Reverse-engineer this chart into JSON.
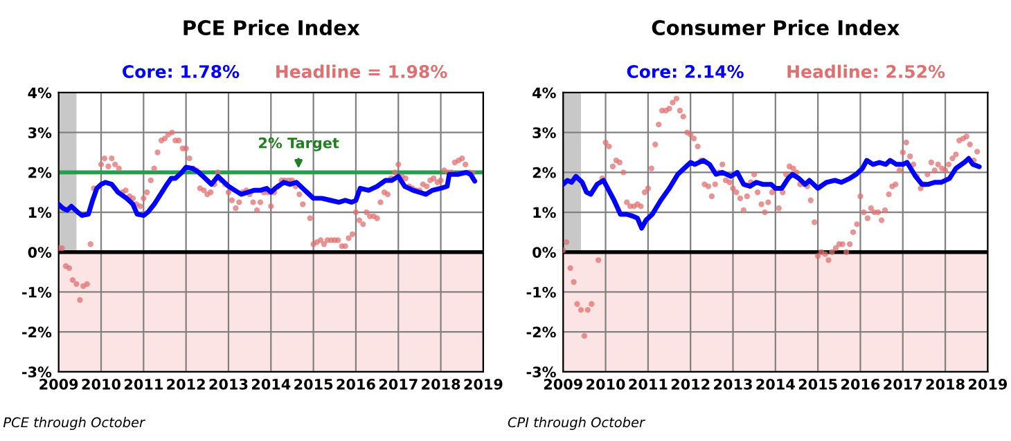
{
  "chart_data": [
    {
      "type": "line",
      "title": "PCE Price Index",
      "xlim": [
        2009,
        2019
      ],
      "xticks": [
        2009,
        2010,
        2011,
        2012,
        2013,
        2014,
        2015,
        2016,
        2017,
        2018,
        2019
      ],
      "ylim": [
        -3,
        4
      ],
      "yticks": [
        {
          "value": -3,
          "label": "-3%"
        },
        {
          "value": -2,
          "label": "-2%"
        },
        {
          "value": -1,
          "label": "-1%"
        },
        {
          "value": 0,
          "label": "0%"
        },
        {
          "value": 1,
          "label": "1%"
        },
        {
          "value": 2,
          "label": "2%"
        },
        {
          "value": 3,
          "label": "3%"
        },
        {
          "value": 4,
          "label": "4%"
        }
      ],
      "grid": true,
      "legend": false,
      "bands": [
        {
          "axis": "x",
          "from": 2009,
          "to": 2009.42,
          "color": "#c8c8c8"
        },
        {
          "axis": "y",
          "from": -3,
          "to": 0,
          "color": "#fde4e4"
        }
      ],
      "ref_lines": [
        {
          "axis": "y",
          "value": 0,
          "color": "#000000"
        },
        {
          "axis": "y",
          "value": 2,
          "color": "#22a050"
        }
      ],
      "annotations": [
        {
          "text": "2% Target",
          "x": 2014.65,
          "y": 2
        },
        "PCE through October"
      ],
      "series": [
        {
          "name": "Headline = 1.98%",
          "type": "scatter",
          "marker": "circle",
          "color": "#e07070",
          "x": [
            2009.0,
            2009.08,
            2009.17,
            2009.25,
            2009.33,
            2009.42,
            2009.5,
            2009.58,
            2009.67,
            2009.75,
            2009.83,
            2010.0,
            2010.08,
            2010.17,
            2010.25,
            2010.33,
            2010.42,
            2010.5,
            2010.58,
            2010.67,
            2010.75,
            2010.83,
            2010.92,
            2011.0,
            2011.08,
            2011.17,
            2011.25,
            2011.33,
            2011.42,
            2011.5,
            2011.58,
            2011.67,
            2011.75,
            2011.83,
            2011.92,
            2012.0,
            2012.08,
            2012.17,
            2012.25,
            2012.33,
            2012.42,
            2012.5,
            2012.58,
            2012.67,
            2012.75,
            2012.83,
            2012.92,
            2013.0,
            2013.08,
            2013.17,
            2013.25,
            2013.33,
            2013.42,
            2013.5,
            2013.58,
            2013.67,
            2013.75,
            2013.83,
            2013.92,
            2014.0,
            2014.08,
            2014.17,
            2014.25,
            2014.33,
            2014.42,
            2014.5,
            2014.58,
            2014.67,
            2014.75,
            2014.92,
            2015.0,
            2015.08,
            2015.17,
            2015.25,
            2015.33,
            2015.42,
            2015.5,
            2015.58,
            2015.67,
            2015.75,
            2015.83,
            2015.92,
            2016.0,
            2016.08,
            2016.17,
            2016.25,
            2016.33,
            2016.42,
            2016.5,
            2016.58,
            2016.67,
            2016.75,
            2016.83,
            2016.92,
            2017.0,
            2017.08,
            2017.17,
            2017.25,
            2017.33,
            2017.42,
            2017.5,
            2017.58,
            2017.67,
            2017.75,
            2017.83,
            2017.92,
            2018.0,
            2018.08,
            2018.17,
            2018.25,
            2018.33,
            2018.42,
            2018.5,
            2018.58,
            2018.67,
            2018.75
          ],
          "values": [
            0.1,
            0.1,
            -0.35,
            -0.4,
            -0.7,
            -0.8,
            -1.2,
            -0.85,
            -0.8,
            0.2,
            1.6,
            2.2,
            2.35,
            2.15,
            2.35,
            2.2,
            2.1,
            1.5,
            1.55,
            1.4,
            1.35,
            1.2,
            1.15,
            1.35,
            1.5,
            1.8,
            2.1,
            2.5,
            2.8,
            2.85,
            2.95,
            3.0,
            2.8,
            2.8,
            2.6,
            2.6,
            2.35,
            2.1,
            2.05,
            1.6,
            1.55,
            1.45,
            1.5,
            1.7,
            2.0,
            1.8,
            1.7,
            1.5,
            1.3,
            1.1,
            1.25,
            1.5,
            1.55,
            1.45,
            1.25,
            1.05,
            1.25,
            1.5,
            1.5,
            1.15,
            1.5,
            1.65,
            1.8,
            1.8,
            1.8,
            1.8,
            1.65,
            1.45,
            1.2,
            0.85,
            0.2,
            0.25,
            0.3,
            0.2,
            0.3,
            0.3,
            0.3,
            0.3,
            0.15,
            0.15,
            0.35,
            0.45,
            1.0,
            0.8,
            0.7,
            1.0,
            0.9,
            0.9,
            0.85,
            1.25,
            1.5,
            1.45,
            1.85,
            2.0,
            2.2,
            1.9,
            1.85,
            1.65,
            1.6,
            1.55,
            1.55,
            1.7,
            1.65,
            1.8,
            1.85,
            1.75,
            1.8,
            2.05,
            2.0,
            2.0,
            2.25,
            2.3,
            2.35,
            2.2,
            2.0,
            1.98
          ]
        },
        {
          "name": "Core: 1.78%",
          "color": "#0000ff",
          "x": [
            2009.0,
            2009.1,
            2009.2,
            2009.3,
            2009.45,
            2009.55,
            2009.7,
            2009.8,
            2009.9,
            2010.0,
            2010.1,
            2010.25,
            2010.4,
            2010.6,
            2010.75,
            2010.85,
            2011.0,
            2011.1,
            2011.25,
            2011.4,
            2011.55,
            2011.65,
            2011.75,
            2011.9,
            2012.0,
            2012.15,
            2012.3,
            2012.45,
            2012.6,
            2012.75,
            2012.9,
            2013.0,
            2013.15,
            2013.3,
            2013.45,
            2013.6,
            2013.75,
            2013.9,
            2014.0,
            2014.1,
            2014.3,
            2014.45,
            2014.6,
            2014.75,
            2014.9,
            2015.0,
            2015.2,
            2015.4,
            2015.6,
            2015.75,
            2015.9,
            2016.0,
            2016.1,
            2016.3,
            2016.5,
            2016.7,
            2016.85,
            2017.0,
            2017.15,
            2017.35,
            2017.5,
            2017.65,
            2017.8,
            2018.0,
            2018.15,
            2018.2,
            2018.4,
            2018.6,
            2018.7,
            2018.8
          ],
          "values": [
            1.2,
            1.1,
            1.05,
            1.15,
            1.0,
            0.92,
            0.95,
            1.3,
            1.6,
            1.7,
            1.75,
            1.7,
            1.5,
            1.35,
            1.2,
            0.95,
            0.92,
            1.0,
            1.2,
            1.45,
            1.7,
            1.85,
            1.85,
            2.0,
            2.13,
            2.1,
            2.0,
            1.85,
            1.7,
            1.9,
            1.75,
            1.65,
            1.55,
            1.45,
            1.5,
            1.55,
            1.55,
            1.6,
            1.5,
            1.6,
            1.75,
            1.7,
            1.75,
            1.6,
            1.45,
            1.35,
            1.35,
            1.3,
            1.25,
            1.3,
            1.25,
            1.3,
            1.6,
            1.55,
            1.65,
            1.8,
            1.8,
            1.9,
            1.65,
            1.55,
            1.5,
            1.45,
            1.55,
            1.6,
            1.65,
            1.95,
            1.95,
            2.0,
            1.95,
            1.78
          ]
        }
      ]
    },
    {
      "type": "line",
      "title": "Consumer Price Index",
      "xlim": [
        2009,
        2019
      ],
      "xticks": [
        2009,
        2010,
        2011,
        2012,
        2013,
        2014,
        2015,
        2016,
        2017,
        2018,
        2019
      ],
      "ylim": [
        -3,
        4
      ],
      "yticks": [
        {
          "value": -3,
          "label": "-3%"
        },
        {
          "value": -2,
          "label": "-2%"
        },
        {
          "value": -1,
          "label": "-1%"
        },
        {
          "value": 0,
          "label": "0%"
        },
        {
          "value": 1,
          "label": "1%"
        },
        {
          "value": 2,
          "label": "2%"
        },
        {
          "value": 3,
          "label": "3%"
        },
        {
          "value": 4,
          "label": "4%"
        }
      ],
      "grid": true,
      "legend": false,
      "bands": [
        {
          "axis": "x",
          "from": 2009,
          "to": 2009.42,
          "color": "#c8c8c8"
        },
        {
          "axis": "y",
          "from": -3,
          "to": 0,
          "color": "#fde4e4"
        }
      ],
      "ref_lines": [
        {
          "axis": "y",
          "value": 0,
          "color": "#000000"
        }
      ],
      "annotations": [
        "CPI through October"
      ],
      "series": [
        {
          "name": "Headline: 2.52%",
          "type": "scatter",
          "marker": "circle",
          "color": "#e07070",
          "x": [
            2009.0,
            2009.08,
            2009.17,
            2009.25,
            2009.33,
            2009.42,
            2009.5,
            2009.58,
            2009.67,
            2009.83,
            2009.92,
            2010.0,
            2010.08,
            2010.17,
            2010.25,
            2010.33,
            2010.42,
            2010.5,
            2010.58,
            2010.67,
            2010.75,
            2010.83,
            2010.92,
            2011.0,
            2011.08,
            2011.17,
            2011.25,
            2011.33,
            2011.42,
            2011.5,
            2011.58,
            2011.67,
            2011.75,
            2011.83,
            2011.92,
            2012.0,
            2012.08,
            2012.17,
            2012.25,
            2012.33,
            2012.42,
            2012.5,
            2012.58,
            2012.67,
            2012.75,
            2012.83,
            2012.92,
            2013.0,
            2013.08,
            2013.17,
            2013.25,
            2013.33,
            2013.42,
            2013.5,
            2013.58,
            2013.67,
            2013.75,
            2013.83,
            2013.92,
            2014.0,
            2014.08,
            2014.17,
            2014.25,
            2014.33,
            2014.42,
            2014.5,
            2014.58,
            2014.67,
            2014.75,
            2014.83,
            2014.92,
            2015.0,
            2015.08,
            2015.17,
            2015.25,
            2015.33,
            2015.42,
            2015.5,
            2015.58,
            2015.67,
            2015.75,
            2015.83,
            2015.92,
            2016.0,
            2016.08,
            2016.17,
            2016.25,
            2016.33,
            2016.42,
            2016.5,
            2016.58,
            2016.67,
            2016.75,
            2016.83,
            2016.92,
            2017.0,
            2017.08,
            2017.17,
            2017.25,
            2017.33,
            2017.42,
            2017.5,
            2017.58,
            2017.67,
            2017.75,
            2017.83,
            2017.92,
            2018.0,
            2018.08,
            2018.17,
            2018.25,
            2018.33,
            2018.42,
            2018.5,
            2018.58,
            2018.67,
            2018.75
          ],
          "values": [
            0.05,
            0.25,
            -0.4,
            -0.75,
            -1.3,
            -1.45,
            -2.1,
            -1.45,
            -1.3,
            -0.2,
            1.85,
            2.75,
            2.65,
            2.15,
            2.3,
            2.25,
            2.0,
            1.25,
            1.15,
            1.15,
            1.2,
            1.15,
            1.5,
            1.6,
            2.1,
            2.7,
            3.2,
            3.55,
            3.55,
            3.6,
            3.75,
            3.85,
            3.55,
            3.4,
            3.0,
            2.95,
            2.85,
            2.65,
            2.3,
            1.7,
            1.65,
            1.4,
            1.7,
            2.0,
            2.2,
            1.8,
            1.75,
            1.6,
            1.5,
            1.35,
            1.05,
            1.4,
            1.75,
            1.95,
            1.5,
            1.2,
            1.0,
            1.25,
            1.5,
            1.6,
            1.1,
            1.5,
            1.95,
            2.15,
            2.1,
            2.0,
            1.7,
            1.7,
            1.65,
            1.3,
            0.75,
            -0.1,
            0.0,
            -0.05,
            -0.2,
            0.0,
            0.1,
            0.2,
            0.2,
            0.0,
            0.2,
            0.5,
            0.7,
            1.4,
            1.0,
            0.85,
            1.1,
            1.0,
            1.0,
            0.8,
            1.05,
            1.45,
            1.65,
            1.7,
            2.05,
            2.5,
            2.75,
            2.4,
            2.2,
            1.9,
            1.6,
            1.7,
            1.95,
            2.25,
            2.05,
            2.2,
            2.1,
            2.05,
            2.2,
            2.35,
            2.45,
            2.8,
            2.85,
            2.9,
            2.7,
            2.3,
            2.52
          ]
        },
        {
          "name": "Core: 2.14%",
          "color": "#0000ff",
          "x": [
            2009.0,
            2009.1,
            2009.2,
            2009.3,
            2009.45,
            2009.55,
            2009.65,
            2009.8,
            2009.95,
            2010.05,
            2010.2,
            2010.35,
            2010.5,
            2010.65,
            2010.75,
            2010.85,
            2010.95,
            2011.1,
            2011.3,
            2011.5,
            2011.7,
            2011.85,
            2012.0,
            2012.1,
            2012.3,
            2012.45,
            2012.6,
            2012.75,
            2012.95,
            2013.1,
            2013.25,
            2013.4,
            2013.55,
            2013.7,
            2013.9,
            2014.0,
            2014.15,
            2014.3,
            2014.4,
            2014.55,
            2014.7,
            2014.8,
            2015.0,
            2015.2,
            2015.4,
            2015.55,
            2015.75,
            2015.9,
            2016.05,
            2016.15,
            2016.3,
            2016.45,
            2016.6,
            2016.7,
            2016.85,
            2017.0,
            2017.1,
            2017.3,
            2017.45,
            2017.6,
            2017.75,
            2017.9,
            2018.1,
            2018.25,
            2018.45,
            2018.55,
            2018.65,
            2018.8
          ],
          "values": [
            1.7,
            1.8,
            1.75,
            1.9,
            1.75,
            1.5,
            1.45,
            1.7,
            1.8,
            1.6,
            1.3,
            0.95,
            0.95,
            0.9,
            0.85,
            0.6,
            0.8,
            0.95,
            1.3,
            1.6,
            1.95,
            2.1,
            2.25,
            2.2,
            2.3,
            2.2,
            1.95,
            2.0,
            1.9,
            2.0,
            1.7,
            1.65,
            1.75,
            1.7,
            1.7,
            1.6,
            1.6,
            1.85,
            1.95,
            1.85,
            1.7,
            1.8,
            1.6,
            1.75,
            1.8,
            1.75,
            1.85,
            1.95,
            2.1,
            2.3,
            2.2,
            2.25,
            2.2,
            2.3,
            2.2,
            2.2,
            2.25,
            1.9,
            1.7,
            1.7,
            1.75,
            1.75,
            1.85,
            2.1,
            2.25,
            2.35,
            2.2,
            2.14
          ]
        }
      ]
    }
  ]
}
